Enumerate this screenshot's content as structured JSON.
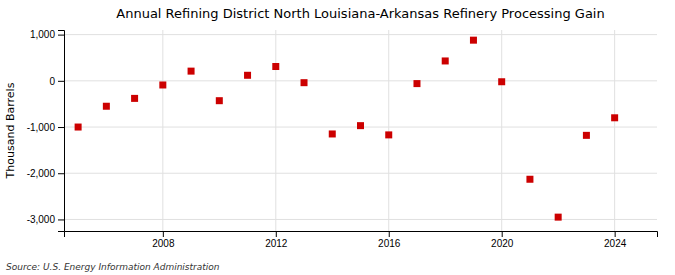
{
  "chart_data": {
    "type": "scatter",
    "title": "Annual Refining District North Louisiana-Arkansas Refinery Processing Gain",
    "ylabel": "Thousand Barrels",
    "source": "Source: U.S. Energy Information Administration",
    "x": [
      2005,
      2006,
      2007,
      2008,
      2009,
      2010,
      2011,
      2012,
      2013,
      2014,
      2015,
      2016,
      2017,
      2018,
      2019,
      2020,
      2021,
      2022,
      2023,
      2024
    ],
    "values": [
      -1000,
      -550,
      -380,
      -90,
      210,
      -430,
      120,
      310,
      -40,
      -1150,
      -970,
      -1170,
      -60,
      430,
      880,
      -20,
      -2130,
      -2950,
      -1180,
      -800
    ],
    "color": "#cc0000",
    "marker": "square",
    "xlim": [
      2004.5,
      2025.5
    ],
    "xticks": [
      2008,
      2012,
      2016,
      2020,
      2024
    ],
    "ylim": [
      -3250,
      1100
    ],
    "yticks": [
      {
        "value": 1000,
        "label": "1,000"
      },
      0,
      {
        "value": -1000,
        "label": "-1,000"
      },
      {
        "value": -2000,
        "label": "-2,000"
      },
      {
        "value": -3000,
        "label": "-3,000"
      }
    ],
    "grid": true
  }
}
